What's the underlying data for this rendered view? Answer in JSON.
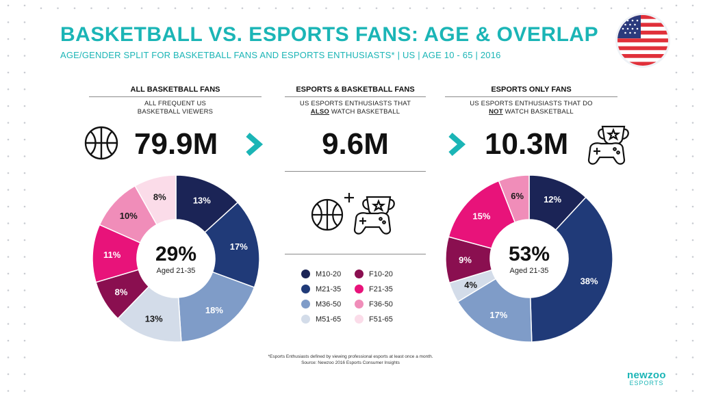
{
  "title": "BASKETBALL VS. ESPORTS FANS: AGE & OVERLAP",
  "subtitle": "AGE/GENDER SPLIT FOR BASKETBALL FANS AND ESPORTS ENTHUSIASTS* | US | AGE 10 - 65 | 2016",
  "columns": [
    {
      "heading": "ALL BASKETBALL FANS",
      "desc_line1": "ALL FREQUENT US",
      "desc_line2": "BASKETBALL VIEWERS",
      "value": "79.9M"
    },
    {
      "heading": "ESPORTS & BASKETBALL FANS",
      "desc_line1": "US ESPORTS ENTHUSIASTS THAT",
      "desc_emph": "ALSO",
      "desc_rest": "WATCH BASKETBALL",
      "value": "9.6M"
    },
    {
      "heading": "ESPORTS ONLY FANS",
      "desc_line1": "US ESPORTS ENTHUSIASTS THAT DO",
      "desc_emph": "NOT",
      "desc_rest": "WATCH BASKETBALL",
      "value": "10.3M"
    }
  ],
  "colors": {
    "accent": "#1bb5b6",
    "M10-20": "#1b2456",
    "M21-35": "#203a78",
    "M36-50": "#7f9cc8",
    "M51-65": "#d3dce9",
    "F10-20": "#8a0f50",
    "F21-35": "#e8137a",
    "F36-50": "#f08db9",
    "F51-65": "#fbdce9"
  },
  "legend": [
    "M10-20",
    "M21-35",
    "M36-50",
    "M51-65",
    "F10-20",
    "F21-35",
    "F36-50",
    "F51-65"
  ],
  "chart_data": [
    {
      "type": "pie",
      "title": "ALL BASKETBALL FANS",
      "categories": [
        "M10-20",
        "M21-35",
        "M36-50",
        "M51-65",
        "F10-20",
        "F21-35",
        "F36-50",
        "F51-65"
      ],
      "values": [
        13,
        17,
        18,
        13,
        8,
        11,
        10,
        8
      ],
      "labels": [
        "13%",
        "17%",
        "18%",
        "13%",
        "8%",
        "11%",
        "10%",
        "8%"
      ],
      "center_value": "29%",
      "center_label": "Aged 21-35"
    },
    {
      "type": "pie",
      "title": "ESPORTS ONLY FANS",
      "categories": [
        "M10-20",
        "M21-35",
        "M36-50",
        "M51-65",
        "F10-20",
        "F21-35",
        "F36-50",
        "F51-65"
      ],
      "values": [
        12,
        38,
        17,
        4,
        9,
        15,
        6,
        0
      ],
      "labels": [
        "12%",
        "38%",
        "17%",
        "4%",
        "9%",
        "15%",
        "6%",
        ""
      ],
      "center_value": "53%",
      "center_label": "Aged 21-35"
    }
  ],
  "footnote_line1": "*Esports Enthusiasts defined by viewing professional esports at least once a month.",
  "footnote_line2": "Source: Newzoo 2016 Esports Consumer Insights",
  "logo": {
    "name": "newzoo",
    "sub": "ESPORTS"
  }
}
